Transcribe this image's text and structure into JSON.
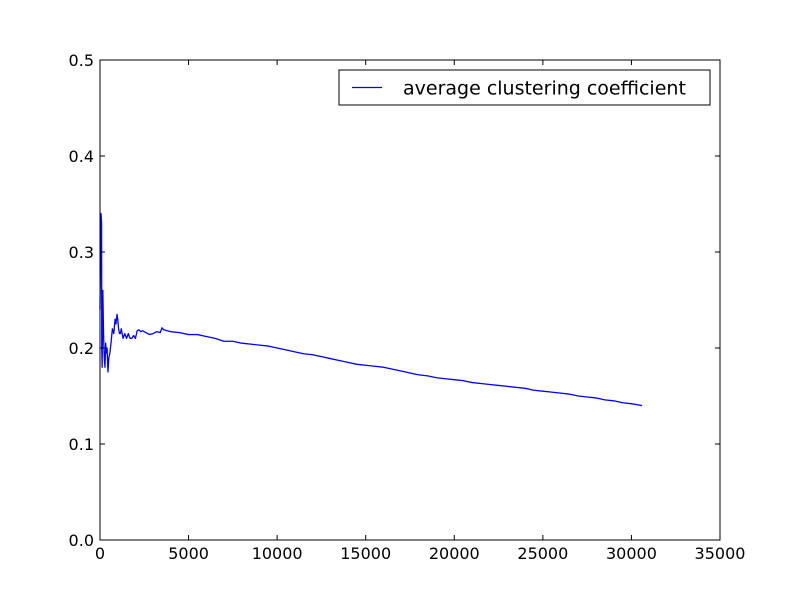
{
  "chart_data": {
    "type": "line",
    "title": "",
    "xlabel": "",
    "ylabel": "",
    "xlim": [
      0,
      35000
    ],
    "ylim": [
      0.0,
      0.5
    ],
    "x_ticks": [
      "0",
      "5000",
      "10000",
      "15000",
      "20000",
      "25000",
      "30000",
      "35000"
    ],
    "y_ticks": [
      "0.0",
      "0.1",
      "0.2",
      "0.3",
      "0.4",
      "0.5"
    ],
    "grid": false,
    "legend_position": "top-right",
    "series": [
      {
        "name": "average clustering coefficient",
        "color": "#0000ff",
        "x": [
          0,
          30,
          60,
          90,
          100,
          120,
          140,
          160,
          200,
          240,
          280,
          320,
          360,
          400,
          450,
          500,
          560,
          620,
          700,
          780,
          850,
          900,
          960,
          1000,
          1050,
          1100,
          1150,
          1200,
          1300,
          1400,
          1500,
          1600,
          1700,
          1800,
          1900,
          2000,
          2100,
          2200,
          2300,
          2400,
          2600,
          2800,
          3000,
          3200,
          3400,
          3500,
          3600,
          3800,
          4000,
          4500,
          5000,
          5500,
          6000,
          6500,
          7000,
          7500,
          8000,
          8500,
          9000,
          9500,
          10000,
          10500,
          11000,
          11500,
          12000,
          12500,
          13000,
          13500,
          14000,
          14500,
          15000,
          15500,
          16000,
          16500,
          17000,
          17500,
          18000,
          18500,
          19000,
          19500,
          20000,
          20500,
          21000,
          21500,
          22000,
          22500,
          23000,
          23500,
          24000,
          24500,
          25000,
          25500,
          26000,
          26500,
          27000,
          27500,
          28000,
          28500,
          29000,
          29500,
          30000,
          30600
        ],
        "y": [
          0.24,
          0.3,
          0.34,
          0.33,
          0.2,
          0.18,
          0.22,
          0.26,
          0.215,
          0.19,
          0.18,
          0.205,
          0.195,
          0.2,
          0.175,
          0.19,
          0.195,
          0.205,
          0.22,
          0.215,
          0.23,
          0.225,
          0.235,
          0.23,
          0.22,
          0.215,
          0.215,
          0.22,
          0.21,
          0.215,
          0.21,
          0.215,
          0.21,
          0.21,
          0.213,
          0.21,
          0.218,
          0.219,
          0.217,
          0.218,
          0.216,
          0.214,
          0.215,
          0.217,
          0.216,
          0.221,
          0.219,
          0.218,
          0.217,
          0.216,
          0.214,
          0.214,
          0.212,
          0.21,
          0.207,
          0.207,
          0.205,
          0.204,
          0.203,
          0.202,
          0.2,
          0.198,
          0.196,
          0.194,
          0.193,
          0.191,
          0.189,
          0.187,
          0.185,
          0.183,
          0.182,
          0.181,
          0.18,
          0.178,
          0.176,
          0.174,
          0.172,
          0.171,
          0.169,
          0.168,
          0.167,
          0.166,
          0.164,
          0.163,
          0.162,
          0.161,
          0.16,
          0.159,
          0.158,
          0.156,
          0.155,
          0.154,
          0.153,
          0.152,
          0.15,
          0.149,
          0.148,
          0.146,
          0.145,
          0.143,
          0.142,
          0.14
        ]
      }
    ]
  }
}
